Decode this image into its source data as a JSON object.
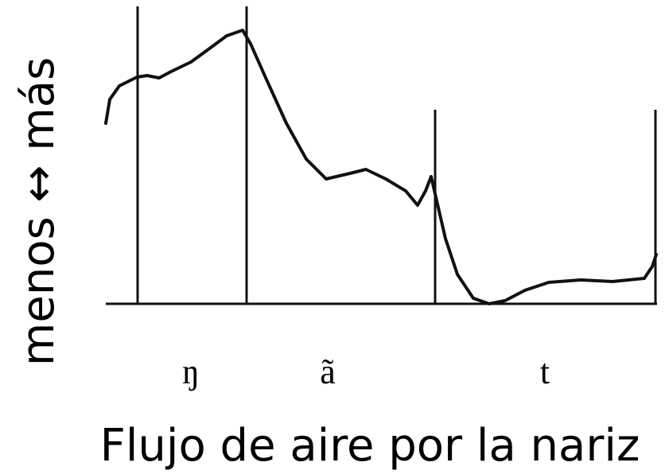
{
  "y_axis_label": "menos ↔ más",
  "segments": [
    "ŋ",
    "ã",
    "t"
  ],
  "title": "Flujo de aire por la nariz"
}
